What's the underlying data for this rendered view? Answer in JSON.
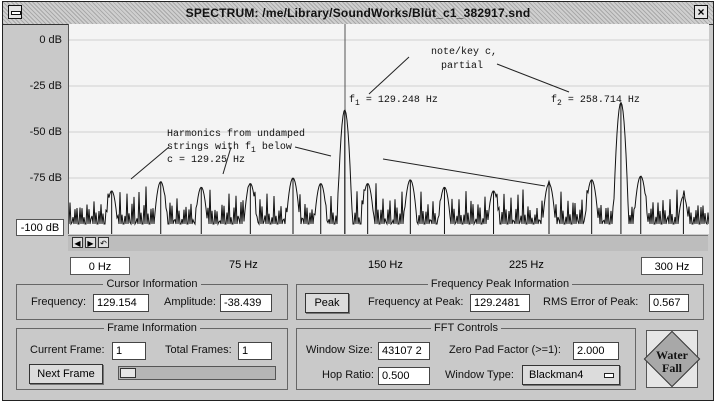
{
  "window": {
    "title": "SPECTRUM:  /me/Library/SoundWorks/Blüt_c1_382917.snd",
    "close_glyph": "×"
  },
  "plot": {
    "y_labels": [
      "0 dB",
      "-25 dB",
      "-50 dB",
      "-75 dB"
    ],
    "y_min_label": "-100 dB",
    "x_min_label": "0 Hz",
    "x_max_label": "300 Hz",
    "x_ticks": [
      "75 Hz",
      "150 Hz",
      "225 Hz"
    ],
    "annotations": {
      "note_line1": "note/key c,",
      "note_line2": "partial",
      "f1_text": "f",
      "f1_sub": "1",
      "f1_value": " = 129.248 Hz",
      "f2_text": "f",
      "f2_sub": "2",
      "f2_value": " = 258.714 Hz",
      "harm_line1": "Harmonics from undamped",
      "harm_line2a": "strings with f",
      "harm_line2sub": "1",
      "harm_line2b": " below",
      "harm_line3": "c = 129.25 Hz"
    },
    "nav": {
      "left": "◀",
      "right": "▶",
      "reset": "↶"
    }
  },
  "cursor": {
    "title": "Cursor Information",
    "frequency_label": "Frequency:",
    "frequency_value": "129.154",
    "amplitude_label": "Amplitude:",
    "amplitude_value": "-38.439"
  },
  "peak": {
    "title": "Frequency Peak Information",
    "button": "Peak",
    "freq_label": "Frequency at Peak:",
    "freq_value": "129.2481",
    "rms_label": "RMS Error of Peak:",
    "rms_value": "0.567"
  },
  "frame": {
    "title": "Frame Information",
    "current_label": "Current Frame:",
    "current_value": "1",
    "total_label": "Total Frames:",
    "total_value": "1",
    "next_button": "Next Frame",
    "slider_level": 0
  },
  "fft": {
    "title": "FFT Controls",
    "window_size_label": "Window Size:",
    "window_size_value": "43107 2",
    "zero_pad_label": "Zero Pad Factor (>=1):",
    "zero_pad_value": "2.000",
    "hop_label": "Hop Ratio:",
    "hop_value": "0.500",
    "window_type_label": "Window Type:",
    "window_type_value": "Blackman4",
    "waterfall_line1": "Water",
    "waterfall_line2": "Fall"
  },
  "chart_data": {
    "type": "line",
    "xlim": [
      0,
      300
    ],
    "ylim": [
      -100,
      0
    ],
    "peaks": [
      {
        "x": 20,
        "y": -82
      },
      {
        "x": 43,
        "y": -77
      },
      {
        "x": 62,
        "y": -80
      },
      {
        "x": 85,
        "y": -78
      },
      {
        "x": 105,
        "y": -75
      },
      {
        "x": 118,
        "y": -78
      },
      {
        "x": 129.248,
        "y": -38
      },
      {
        "x": 140,
        "y": -78
      },
      {
        "x": 160,
        "y": -76
      },
      {
        "x": 176,
        "y": -80
      },
      {
        "x": 199,
        "y": -82
      },
      {
        "x": 225,
        "y": -78
      },
      {
        "x": 245,
        "y": -76
      },
      {
        "x": 258.714,
        "y": -34
      },
      {
        "x": 268,
        "y": -74
      },
      {
        "x": 288,
        "y": -85
      }
    ]
  }
}
